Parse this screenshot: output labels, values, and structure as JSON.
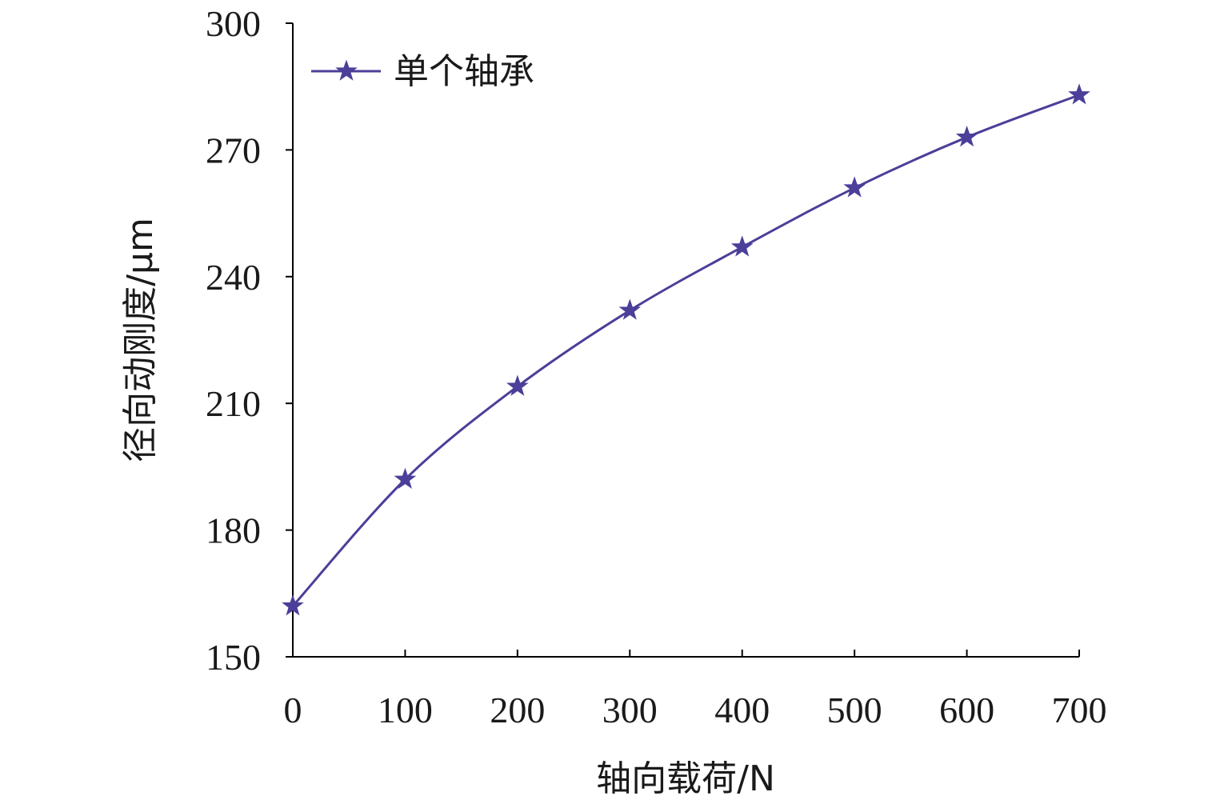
{
  "chart_data": {
    "type": "line",
    "title": "",
    "xlabel": "轴向载荷/N",
    "ylabel": "径向动刚度/μm",
    "x": [
      0,
      100,
      200,
      300,
      400,
      500,
      600,
      700
    ],
    "xlim": [
      0,
      700
    ],
    "ylim": [
      150,
      300
    ],
    "xticks": [
      "0",
      "100",
      "200",
      "300",
      "400",
      "500",
      "600",
      "700"
    ],
    "yticks": [
      "150",
      "180",
      "210",
      "240",
      "270",
      "300"
    ],
    "series": [
      {
        "name": "单个轴承",
        "marker": "star",
        "color": "#4b3f99",
        "values": [
          162,
          192,
          214,
          232,
          247,
          261,
          273,
          283
        ]
      }
    ],
    "legend": "top-left",
    "grid": false
  }
}
